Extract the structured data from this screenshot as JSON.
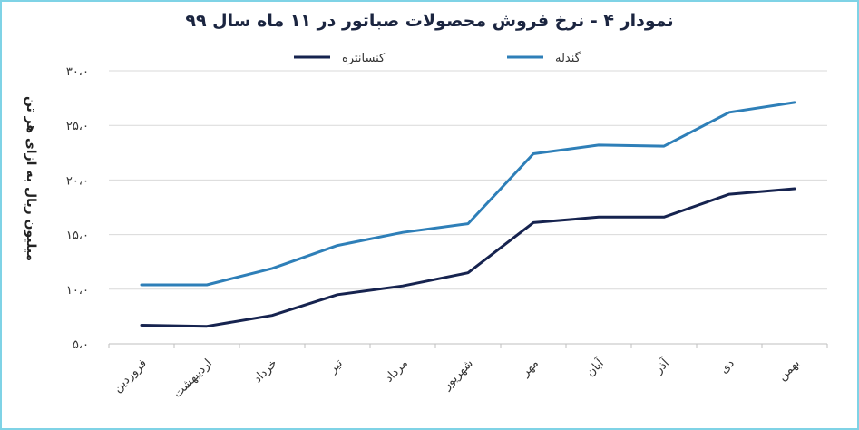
{
  "chart_data": {
    "type": "line",
    "title": "نمودار ۴ - نرخ فروش محصولات صباتور در ۱۱ ماه سال ۹۹",
    "ylabel": "میلیون ریال به ازای هر تن",
    "xlabel": "",
    "categories": [
      "فروردین",
      "اردیبهشت",
      "خرداد",
      "تیر",
      "مرداد",
      "شهریور",
      "مهر",
      "آبان",
      "آذر",
      "دی",
      "بهمن"
    ],
    "ylim": [
      5,
      30
    ],
    "yticks": [
      5,
      10,
      15,
      20,
      25,
      30
    ],
    "ytick_labels": [
      "۵،۰",
      "۱۰،۰",
      "۱۵،۰",
      "۲۰،۰",
      "۲۵،۰",
      "۳۰،۰"
    ],
    "grid": true,
    "legend_position": "top",
    "series": [
      {
        "name": "کنسانتره",
        "color": "#16234f",
        "values": [
          6.7,
          6.6,
          7.6,
          9.5,
          10.3,
          11.5,
          16.1,
          16.6,
          16.6,
          18.7,
          19.2
        ]
      },
      {
        "name": "گندله",
        "color": "#2e7fb8",
        "values": [
          10.4,
          10.4,
          11.9,
          14.0,
          15.2,
          16.0,
          22.4,
          23.2,
          23.1,
          26.2,
          27.1
        ]
      }
    ]
  }
}
